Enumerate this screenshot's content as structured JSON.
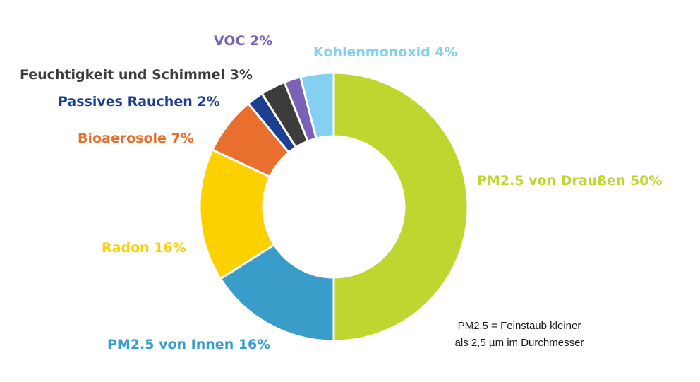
{
  "chart_data": {
    "type": "pie",
    "donut": true,
    "slices": [
      {
        "label": "PM2.5 von Draußen 50%",
        "value": 50,
        "color": "#bfd630"
      },
      {
        "label": "PM2.5 von Innen 16%",
        "value": 16,
        "color": "#3a9cc8"
      },
      {
        "label": "Radon 16%",
        "value": 16,
        "color": "#fdd000"
      },
      {
        "label": "Bioaerosole 7%",
        "value": 7,
        "color": "#e86f2e"
      },
      {
        "label": "Passives Rauchen 2%",
        "value": 2,
        "color": "#1d3f91"
      },
      {
        "label": "Feuchtigkeit und Schimmel 3%",
        "value": 3,
        "color": "#3c3c3c"
      },
      {
        "label": "VOC 2%",
        "value": 2,
        "color": "#7a62b6"
      },
      {
        "label": "Kohlenmonoxid 4%",
        "value": 4,
        "color": "#83d0f2"
      }
    ],
    "note": [
      "PM2.5 = Feinstaub kleiner",
      "als 2,5 µm im Durchmesser"
    ]
  }
}
